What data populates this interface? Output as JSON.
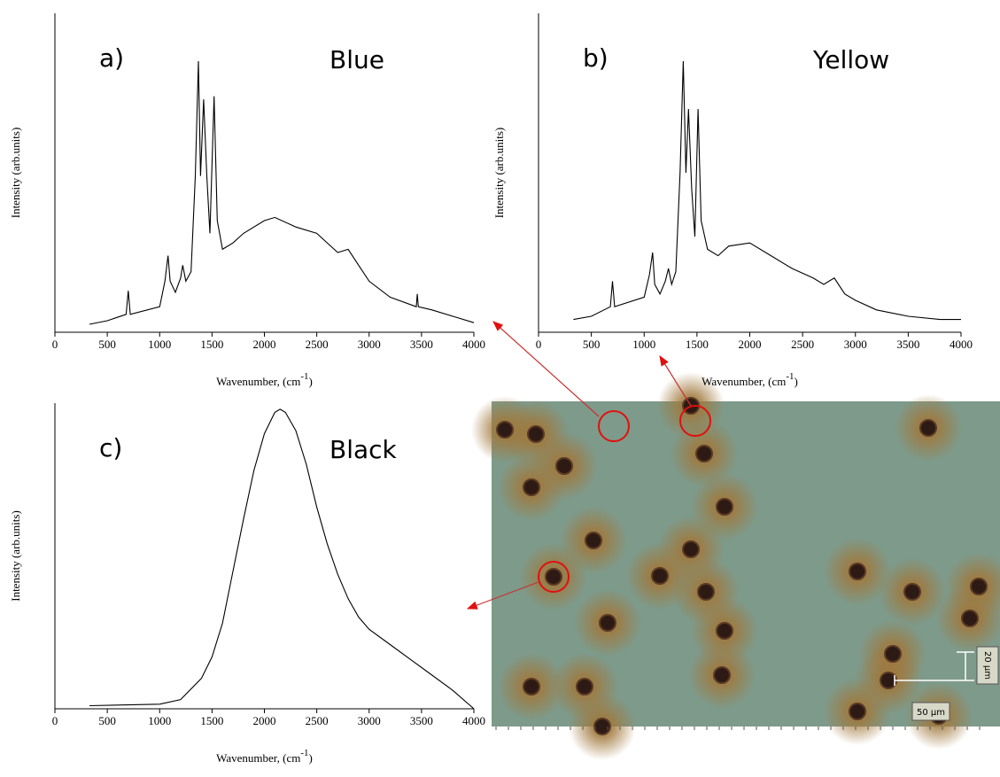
{
  "chart_data": [
    {
      "type": "line",
      "panel": "a)",
      "title": "Blue",
      "ylabel": "Intensity (arb.units)",
      "xlabel": [
        "Wavenumber, (cm",
        "-1",
        ")"
      ],
      "color": "#000000",
      "xlim": [
        0,
        4000
      ],
      "xticks": [
        0,
        500,
        1000,
        1500,
        2000,
        2500,
        3000,
        3500,
        4000
      ],
      "ylim": [
        0,
        100
      ],
      "x": [
        330,
        500,
        680,
        700,
        720,
        1000,
        1050,
        1080,
        1100,
        1150,
        1200,
        1220,
        1250,
        1300,
        1340,
        1370,
        1390,
        1420,
        1450,
        1480,
        1520,
        1550,
        1600,
        1700,
        1800,
        2000,
        2100,
        2300,
        2500,
        2700,
        2800,
        2900,
        3000,
        3200,
        3450,
        3460,
        3470,
        3600,
        3800,
        4000
      ],
      "values": [
        2.5,
        3.6,
        5.6,
        13,
        5.6,
        8,
        16,
        24,
        16,
        12.5,
        17,
        21,
        16,
        19,
        49,
        85,
        49,
        73,
        49,
        31,
        74,
        35,
        26,
        28,
        31,
        35,
        36,
        33,
        31,
        25,
        26,
        21,
        16,
        11,
        8,
        12,
        8,
        7,
        5,
        3
      ]
    },
    {
      "type": "line",
      "panel": "b)",
      "title": "Yellow",
      "ylabel": "Intensity (arb.units)",
      "xlabel": [
        "Wavenumber, (cm",
        "-1",
        ")"
      ],
      "color": "#000000",
      "xlim": [
        0,
        4000
      ],
      "xticks": [
        0,
        500,
        1000,
        1500,
        2000,
        2500,
        3000,
        3500,
        4000
      ],
      "ylim": [
        0,
        100
      ],
      "x": [
        330,
        500,
        680,
        700,
        720,
        1000,
        1050,
        1080,
        1100,
        1150,
        1200,
        1230,
        1260,
        1300,
        1340,
        1370,
        1395,
        1420,
        1450,
        1480,
        1510,
        1540,
        1600,
        1700,
        1800,
        2000,
        2200,
        2400,
        2600,
        2700,
        2800,
        2900,
        3000,
        3200,
        3500,
        3800,
        4000
      ],
      "values": [
        4,
        5,
        8,
        16,
        8,
        11,
        18,
        25,
        15,
        12,
        16,
        20,
        15,
        19,
        50,
        85,
        50,
        70,
        45,
        30,
        70,
        35,
        26,
        24,
        27,
        28,
        24,
        20,
        17,
        15,
        17,
        12,
        10,
        7,
        5,
        4,
        4
      ]
    },
    {
      "type": "line",
      "panel": "c)",
      "title": "Black",
      "ylabel": "Intensity (arb.units)",
      "xlabel": [
        "Wavenumber, (cm",
        "-1",
        ")"
      ],
      "color": "#000000",
      "xlim": [
        0,
        4000
      ],
      "xticks": [
        0,
        500,
        1000,
        1500,
        2000,
        2500,
        3000,
        3500,
        4000
      ],
      "ylim": [
        0,
        100
      ],
      "x": [
        330,
        1000,
        1200,
        1400,
        1500,
        1600,
        1700,
        1800,
        1900,
        2000,
        2100,
        2150,
        2200,
        2300,
        2400,
        2500,
        2600,
        2700,
        2800,
        2900,
        3000,
        3200,
        3400,
        3600,
        3800,
        4000
      ],
      "values": [
        1,
        1.5,
        3,
        10,
        17,
        28,
        45,
        62,
        78,
        90,
        97,
        98,
        97,
        91,
        80,
        66,
        54,
        44,
        36,
        30,
        26,
        21,
        16,
        11,
        6,
        0
      ]
    }
  ],
  "micrograph": {
    "scale_bars": [
      "20 µm",
      "50 µm"
    ]
  }
}
